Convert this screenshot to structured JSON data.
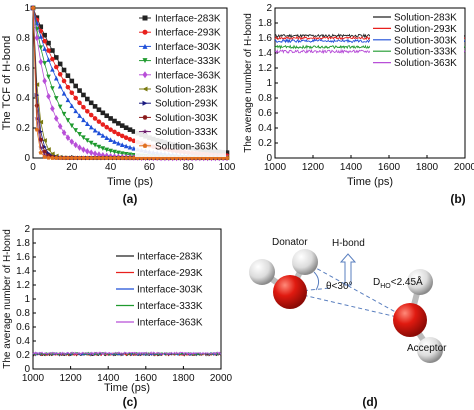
{
  "chart_data": [
    {
      "panel": "(a)",
      "type": "scatter",
      "xlabel": "Time (ps)",
      "ylabel": "The TCF of H-bond",
      "xlim": [
        0,
        100
      ],
      "ylim": [
        0,
        1.0
      ],
      "xticks": [
        0,
        20,
        40,
        60,
        80,
        100
      ],
      "yticks": [
        0.0,
        0.2,
        0.4,
        0.6,
        0.8,
        1.0
      ],
      "legend": "top-right",
      "grid": false,
      "x": [
        0,
        2,
        4,
        6,
        8,
        10,
        12,
        14,
        16,
        18,
        20,
        22,
        24,
        26,
        28,
        30,
        32,
        34,
        36,
        38,
        40,
        42,
        44,
        46,
        48,
        50,
        52,
        54,
        56,
        58,
        60,
        62,
        64,
        66,
        68,
        70,
        72,
        74,
        76,
        78,
        80,
        82,
        84,
        86,
        88,
        90,
        92,
        94,
        96,
        98,
        100
      ],
      "series": [
        {
          "name": "Interface-283K",
          "marker": "square",
          "color": "#222222",
          "tau": 30
        },
        {
          "name": "Interface-293K",
          "marker": "circle",
          "color": "#e8201d",
          "tau": 24
        },
        {
          "name": "Interface-303K",
          "marker": "triangle-up",
          "color": "#1f4fd8",
          "tau": 19
        },
        {
          "name": "Interface-333K",
          "marker": "triangle-down",
          "color": "#1f9a2e",
          "tau": 13
        },
        {
          "name": "Interface-363K",
          "marker": "diamond",
          "color": "#b84fd8",
          "tau": 9
        },
        {
          "name": "Solution-283K",
          "marker": "triangle-left",
          "color": "#7a7a10",
          "tau": 2.8
        },
        {
          "name": "Solution-293K",
          "marker": "triangle-right",
          "color": "#1a1a80",
          "tau": 2.3
        },
        {
          "name": "Solution-303K",
          "marker": "hexagon",
          "color": "#8a1a1a",
          "tau": 1.9
        },
        {
          "name": "Solution-333K",
          "marker": "star",
          "color": "#6a1a6a",
          "tau": 1.5
        },
        {
          "name": "Solution-363K",
          "marker": "pentagon",
          "color": "#e07020",
          "tau": 1.2
        }
      ]
    },
    {
      "panel": "(b)",
      "type": "line",
      "xlabel": "Time (ps)",
      "ylabel": "The average number of H-bond",
      "xlim": [
        1000,
        2000
      ],
      "ylim": [
        0.0,
        2.0
      ],
      "xticks": [
        1000,
        1200,
        1400,
        1600,
        1800,
        2000
      ],
      "yticks": [
        0.0,
        0.2,
        0.4,
        0.6,
        0.8,
        1.0,
        1.2,
        1.4,
        1.6,
        1.8,
        2.0
      ],
      "legend": "top-right",
      "grid": false,
      "series": [
        {
          "name": "Solution-283K",
          "color": "#222222",
          "mean": 1.63
        },
        {
          "name": "Solution-293K",
          "color": "#e8201d",
          "mean": 1.6
        },
        {
          "name": "Solution-303K",
          "color": "#1f4fd8",
          "mean": 1.56
        },
        {
          "name": "Solution-333K",
          "color": "#1f9a2e",
          "mean": 1.48
        },
        {
          "name": "Solution-363K",
          "color": "#b84fd8",
          "mean": 1.42
        }
      ]
    },
    {
      "panel": "(c)",
      "type": "line",
      "xlabel": "Time (ps)",
      "ylabel": "The average number of H-bond",
      "xlim": [
        1000,
        2000
      ],
      "ylim": [
        0.0,
        2.0
      ],
      "xticks": [
        1000,
        1200,
        1400,
        1600,
        1800,
        2000
      ],
      "yticks": [
        0.0,
        0.2,
        0.4,
        0.6,
        0.8,
        1.0,
        1.2,
        1.4,
        1.6,
        1.8,
        2.0
      ],
      "legend": "top-right",
      "grid": false,
      "series": [
        {
          "name": "Interface-283K",
          "color": "#222222",
          "mean": 0.205
        },
        {
          "name": "Interface-293K",
          "color": "#e8201d",
          "mean": 0.21
        },
        {
          "name": "Interface-303K",
          "color": "#1f4fd8",
          "mean": 0.215
        },
        {
          "name": "Interface-333K",
          "color": "#1f9a2e",
          "mean": 0.22
        },
        {
          "name": "Interface-363K",
          "color": "#b84fd8",
          "mean": 0.225
        }
      ]
    }
  ],
  "diagram": {
    "panel": "(d)",
    "labels": {
      "donator": "Donator",
      "acceptor": "Acceptor",
      "hbond": "H-bond",
      "angle": "θ<30°",
      "dist_main": "D",
      "dist_sub": "HO",
      "dist_rest": "<2.45Å"
    },
    "colors": {
      "oxygen": "#e01a10",
      "hydrogen": "#e8e8e8",
      "bond": "#5a7fbf"
    }
  }
}
